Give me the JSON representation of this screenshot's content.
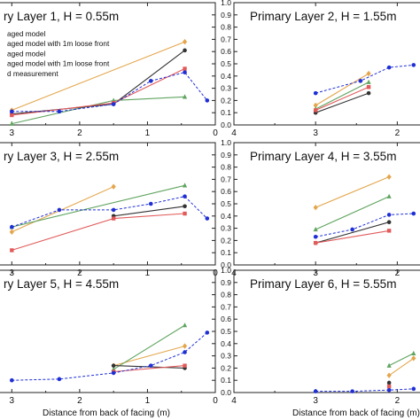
{
  "figure": {
    "xlabel": "Distance from back of facing (m)"
  },
  "chart_data": [
    {
      "type": "line",
      "panel": "left-top",
      "title": "ry Layer 1, H = 0.55m",
      "xlim": [
        0,
        3.2
      ],
      "x_reversed": true,
      "ylim": [
        0,
        1.0
      ],
      "xticks": [
        3,
        2,
        1,
        0
      ],
      "yticks": [],
      "legend": {
        "placement": "top-left",
        "entries": [
          "aged model",
          "aged model with 1m loose front",
          "aged model",
          "aged model with 1m loose front",
          "d measurement"
        ]
      },
      "series": [
        {
          "name": "aged model",
          "color": "#e4a64c",
          "style": "solid",
          "marker": "diamond",
          "x": [
            3.0,
            0.45
          ],
          "y": [
            0.12,
            0.68
          ]
        },
        {
          "name": "aged model with 1m loose front",
          "color": "#5fa45f",
          "style": "solid",
          "marker": "triangle",
          "x": [
            3.0,
            1.5,
            0.45
          ],
          "y": [
            0.01,
            0.2,
            0.23
          ]
        },
        {
          "name": "aged model",
          "color": "#333333",
          "style": "solid",
          "marker": "circle",
          "x": [
            3.0,
            1.5,
            0.45
          ],
          "y": [
            0.09,
            0.17,
            0.61
          ]
        },
        {
          "name": "aged model with 1m loose front",
          "color": "#e25a5a",
          "style": "solid",
          "marker": "square",
          "x": [
            3.0,
            1.5,
            0.45
          ],
          "y": [
            0.08,
            0.18,
            0.46
          ]
        },
        {
          "name": "d measurement",
          "color": "#1f2fd6",
          "style": "dashed",
          "marker": "circle",
          "x": [
            3.0,
            2.3,
            1.5,
            0.95,
            0.45,
            0.12
          ],
          "y": [
            0.11,
            0.11,
            0.17,
            0.36,
            0.43,
            0.2
          ]
        }
      ]
    },
    {
      "type": "line",
      "panel": "right-top",
      "title": "Primary Layer 2, H = 1.55m",
      "xlim": [
        1.7,
        4.0
      ],
      "x_reversed": true,
      "ylim": [
        0,
        1.0
      ],
      "xticks": [
        4,
        3,
        2
      ],
      "yticks": [
        0.0,
        0.1,
        0.2,
        0.3,
        0.4,
        0.5,
        0.6,
        0.7,
        0.8,
        0.9,
        1.0
      ],
      "series": [
        {
          "color": "#e4a64c",
          "style": "solid",
          "marker": "diamond",
          "x": [
            3.0,
            2.35
          ],
          "y": [
            0.16,
            0.42
          ]
        },
        {
          "color": "#5fa45f",
          "style": "solid",
          "marker": "triangle",
          "x": [
            3.0,
            2.35
          ],
          "y": [
            0.13,
            0.35
          ]
        },
        {
          "color": "#333333",
          "style": "solid",
          "marker": "circle",
          "x": [
            3.0,
            2.35
          ],
          "y": [
            0.1,
            0.26
          ]
        },
        {
          "color": "#e25a5a",
          "style": "solid",
          "marker": "square",
          "x": [
            3.0,
            2.35
          ],
          "y": [
            0.12,
            0.31
          ]
        },
        {
          "color": "#1f2fd6",
          "style": "dashed",
          "marker": "circle",
          "x": [
            3.0,
            2.45,
            2.1,
            1.8
          ],
          "y": [
            0.26,
            0.36,
            0.47,
            0.49
          ]
        }
      ]
    },
    {
      "type": "line",
      "panel": "left-middle",
      "title": "ry Layer 3, H = 2.55m",
      "xlim": [
        0,
        3.2
      ],
      "x_reversed": true,
      "ylim": [
        0,
        1.0
      ],
      "xticks": [
        3,
        2,
        1,
        0
      ],
      "yticks": [],
      "series": [
        {
          "color": "#e4a64c",
          "style": "solid",
          "marker": "diamond",
          "x": [
            3.0,
            1.5
          ],
          "y": [
            0.27,
            0.64
          ]
        },
        {
          "color": "#5fa45f",
          "style": "solid",
          "marker": "triangle",
          "x": [
            3.0,
            0.45
          ],
          "y": [
            0.31,
            0.65
          ]
        },
        {
          "color": "#333333",
          "style": "solid",
          "marker": "circle",
          "x": [
            1.5,
            0.45
          ],
          "y": [
            0.4,
            0.48
          ]
        },
        {
          "color": "#e25a5a",
          "style": "solid",
          "marker": "square",
          "x": [
            3.0,
            1.5,
            0.45
          ],
          "y": [
            0.12,
            0.38,
            0.42
          ]
        },
        {
          "color": "#1f2fd6",
          "style": "dashed",
          "marker": "circle",
          "x": [
            3.0,
            2.3,
            1.5,
            0.95,
            0.45,
            0.12
          ],
          "y": [
            0.31,
            0.45,
            0.45,
            0.5,
            0.56,
            0.38
          ]
        }
      ]
    },
    {
      "type": "line",
      "panel": "right-middle",
      "title": "Primary Layer 4, H = 3.55m",
      "xlim": [
        1.7,
        4.0
      ],
      "x_reversed": true,
      "ylim": [
        0,
        1.0
      ],
      "xticks": [
        4,
        3,
        2
      ],
      "yticks": [
        0.0,
        0.1,
        0.2,
        0.3,
        0.4,
        0.5,
        0.6,
        0.7,
        0.8,
        0.9,
        1.0
      ],
      "series": [
        {
          "color": "#e4a64c",
          "style": "solid",
          "marker": "diamond",
          "x": [
            3.0,
            2.1
          ],
          "y": [
            0.47,
            0.72
          ]
        },
        {
          "color": "#5fa45f",
          "style": "solid",
          "marker": "triangle",
          "x": [
            3.0,
            2.1
          ],
          "y": [
            0.29,
            0.56
          ]
        },
        {
          "color": "#333333",
          "style": "solid",
          "marker": "circle",
          "x": [
            3.0,
            2.1
          ],
          "y": [
            0.18,
            0.35
          ]
        },
        {
          "color": "#e25a5a",
          "style": "solid",
          "marker": "square",
          "x": [
            3.0,
            2.1
          ],
          "y": [
            0.18,
            0.28
          ]
        },
        {
          "color": "#1f2fd6",
          "style": "dashed",
          "marker": "circle",
          "x": [
            3.0,
            2.55,
            2.1,
            1.8
          ],
          "y": [
            0.23,
            0.29,
            0.41,
            0.42
          ]
        }
      ]
    },
    {
      "type": "line",
      "panel": "left-bottom",
      "title": "ry Layer 5, H = 4.55m",
      "xlim": [
        0,
        3.2
      ],
      "x_reversed": true,
      "ylim": [
        0,
        1.0
      ],
      "xticks": [
        3,
        2,
        1,
        0
      ],
      "yticks": [],
      "series": [
        {
          "color": "#e4a64c",
          "style": "solid",
          "marker": "diamond",
          "x": [
            1.5,
            0.45
          ],
          "y": [
            0.22,
            0.38
          ]
        },
        {
          "color": "#5fa45f",
          "style": "solid",
          "marker": "triangle",
          "x": [
            1.5,
            0.45
          ],
          "y": [
            0.19,
            0.55
          ]
        },
        {
          "color": "#333333",
          "style": "solid",
          "marker": "circle",
          "x": [
            1.5,
            0.45
          ],
          "y": [
            0.22,
            0.2
          ]
        },
        {
          "color": "#e25a5a",
          "style": "solid",
          "marker": "square",
          "x": [
            1.5,
            0.45
          ],
          "y": [
            0.17,
            0.22
          ]
        },
        {
          "color": "#1f2fd6",
          "style": "dashed",
          "marker": "circle",
          "x": [
            3.0,
            2.3,
            1.5,
            0.95,
            0.45,
            0.12
          ],
          "y": [
            0.1,
            0.11,
            0.16,
            0.22,
            0.33,
            0.49
          ]
        }
      ]
    },
    {
      "type": "line",
      "panel": "right-bottom",
      "title": "Primary Layer 6, H = 5.55m",
      "xlim": [
        1.7,
        4.0
      ],
      "x_reversed": true,
      "ylim": [
        0,
        1.0
      ],
      "xticks": [
        4,
        3,
        2
      ],
      "yticks": [
        0.0,
        0.1,
        0.2,
        0.3,
        0.4,
        0.5,
        0.6,
        0.7,
        0.8,
        0.9,
        1.0
      ],
      "series": [
        {
          "color": "#e4a64c",
          "style": "solid",
          "marker": "diamond",
          "x": [
            2.1,
            1.8
          ],
          "y": [
            0.14,
            0.28
          ]
        },
        {
          "color": "#5fa45f",
          "style": "solid",
          "marker": "triangle",
          "x": [
            2.1,
            1.8
          ],
          "y": [
            0.22,
            0.32
          ]
        },
        {
          "color": "#333333",
          "style": "solid",
          "marker": "circle",
          "x": [
            2.1
          ],
          "y": [
            0.08
          ]
        },
        {
          "color": "#e25a5a",
          "style": "solid",
          "marker": "square",
          "x": [
            2.1
          ],
          "y": [
            0.05
          ]
        },
        {
          "color": "#1f2fd6",
          "style": "dashed",
          "marker": "circle",
          "x": [
            3.0,
            2.55,
            2.1,
            1.8
          ],
          "y": [
            0.01,
            0.01,
            0.02,
            0.03
          ]
        }
      ]
    }
  ]
}
